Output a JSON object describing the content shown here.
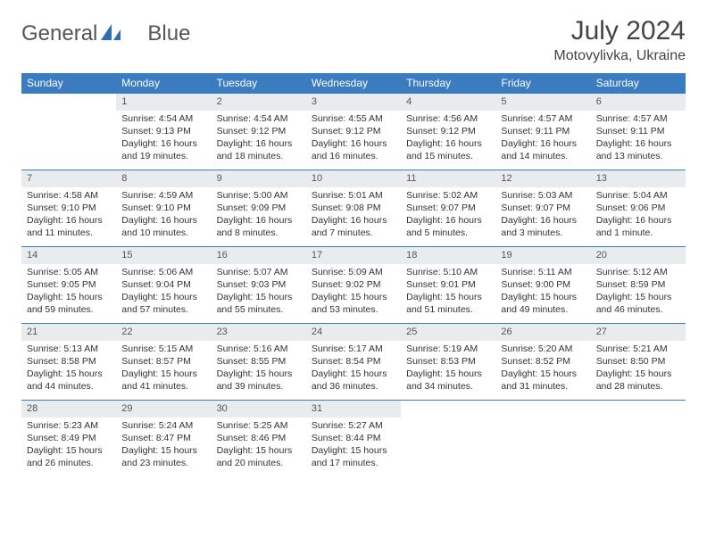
{
  "brand": {
    "part1": "General",
    "part2": "Blue"
  },
  "title": "July 2024",
  "location": "Motovylivka, Ukraine",
  "colors": {
    "header_bg": "#3b7bbf",
    "header_text": "#ffffff",
    "daynum_bg": "#e9ecef",
    "rule": "#3b7bbf",
    "body_text": "#333333",
    "title_text": "#444444"
  },
  "weekdays": [
    "Sunday",
    "Monday",
    "Tuesday",
    "Wednesday",
    "Thursday",
    "Friday",
    "Saturday"
  ],
  "weeks": [
    [
      {
        "n": "",
        "sr": "",
        "ss": "",
        "dl1": "",
        "dl2": ""
      },
      {
        "n": "1",
        "sr": "Sunrise: 4:54 AM",
        "ss": "Sunset: 9:13 PM",
        "dl1": "Daylight: 16 hours",
        "dl2": "and 19 minutes."
      },
      {
        "n": "2",
        "sr": "Sunrise: 4:54 AM",
        "ss": "Sunset: 9:12 PM",
        "dl1": "Daylight: 16 hours",
        "dl2": "and 18 minutes."
      },
      {
        "n": "3",
        "sr": "Sunrise: 4:55 AM",
        "ss": "Sunset: 9:12 PM",
        "dl1": "Daylight: 16 hours",
        "dl2": "and 16 minutes."
      },
      {
        "n": "4",
        "sr": "Sunrise: 4:56 AM",
        "ss": "Sunset: 9:12 PM",
        "dl1": "Daylight: 16 hours",
        "dl2": "and 15 minutes."
      },
      {
        "n": "5",
        "sr": "Sunrise: 4:57 AM",
        "ss": "Sunset: 9:11 PM",
        "dl1": "Daylight: 16 hours",
        "dl2": "and 14 minutes."
      },
      {
        "n": "6",
        "sr": "Sunrise: 4:57 AM",
        "ss": "Sunset: 9:11 PM",
        "dl1": "Daylight: 16 hours",
        "dl2": "and 13 minutes."
      }
    ],
    [
      {
        "n": "7",
        "sr": "Sunrise: 4:58 AM",
        "ss": "Sunset: 9:10 PM",
        "dl1": "Daylight: 16 hours",
        "dl2": "and 11 minutes."
      },
      {
        "n": "8",
        "sr": "Sunrise: 4:59 AM",
        "ss": "Sunset: 9:10 PM",
        "dl1": "Daylight: 16 hours",
        "dl2": "and 10 minutes."
      },
      {
        "n": "9",
        "sr": "Sunrise: 5:00 AM",
        "ss": "Sunset: 9:09 PM",
        "dl1": "Daylight: 16 hours",
        "dl2": "and 8 minutes."
      },
      {
        "n": "10",
        "sr": "Sunrise: 5:01 AM",
        "ss": "Sunset: 9:08 PM",
        "dl1": "Daylight: 16 hours",
        "dl2": "and 7 minutes."
      },
      {
        "n": "11",
        "sr": "Sunrise: 5:02 AM",
        "ss": "Sunset: 9:07 PM",
        "dl1": "Daylight: 16 hours",
        "dl2": "and 5 minutes."
      },
      {
        "n": "12",
        "sr": "Sunrise: 5:03 AM",
        "ss": "Sunset: 9:07 PM",
        "dl1": "Daylight: 16 hours",
        "dl2": "and 3 minutes."
      },
      {
        "n": "13",
        "sr": "Sunrise: 5:04 AM",
        "ss": "Sunset: 9:06 PM",
        "dl1": "Daylight: 16 hours",
        "dl2": "and 1 minute."
      }
    ],
    [
      {
        "n": "14",
        "sr": "Sunrise: 5:05 AM",
        "ss": "Sunset: 9:05 PM",
        "dl1": "Daylight: 15 hours",
        "dl2": "and 59 minutes."
      },
      {
        "n": "15",
        "sr": "Sunrise: 5:06 AM",
        "ss": "Sunset: 9:04 PM",
        "dl1": "Daylight: 15 hours",
        "dl2": "and 57 minutes."
      },
      {
        "n": "16",
        "sr": "Sunrise: 5:07 AM",
        "ss": "Sunset: 9:03 PM",
        "dl1": "Daylight: 15 hours",
        "dl2": "and 55 minutes."
      },
      {
        "n": "17",
        "sr": "Sunrise: 5:09 AM",
        "ss": "Sunset: 9:02 PM",
        "dl1": "Daylight: 15 hours",
        "dl2": "and 53 minutes."
      },
      {
        "n": "18",
        "sr": "Sunrise: 5:10 AM",
        "ss": "Sunset: 9:01 PM",
        "dl1": "Daylight: 15 hours",
        "dl2": "and 51 minutes."
      },
      {
        "n": "19",
        "sr": "Sunrise: 5:11 AM",
        "ss": "Sunset: 9:00 PM",
        "dl1": "Daylight: 15 hours",
        "dl2": "and 49 minutes."
      },
      {
        "n": "20",
        "sr": "Sunrise: 5:12 AM",
        "ss": "Sunset: 8:59 PM",
        "dl1": "Daylight: 15 hours",
        "dl2": "and 46 minutes."
      }
    ],
    [
      {
        "n": "21",
        "sr": "Sunrise: 5:13 AM",
        "ss": "Sunset: 8:58 PM",
        "dl1": "Daylight: 15 hours",
        "dl2": "and 44 minutes."
      },
      {
        "n": "22",
        "sr": "Sunrise: 5:15 AM",
        "ss": "Sunset: 8:57 PM",
        "dl1": "Daylight: 15 hours",
        "dl2": "and 41 minutes."
      },
      {
        "n": "23",
        "sr": "Sunrise: 5:16 AM",
        "ss": "Sunset: 8:55 PM",
        "dl1": "Daylight: 15 hours",
        "dl2": "and 39 minutes."
      },
      {
        "n": "24",
        "sr": "Sunrise: 5:17 AM",
        "ss": "Sunset: 8:54 PM",
        "dl1": "Daylight: 15 hours",
        "dl2": "and 36 minutes."
      },
      {
        "n": "25",
        "sr": "Sunrise: 5:19 AM",
        "ss": "Sunset: 8:53 PM",
        "dl1": "Daylight: 15 hours",
        "dl2": "and 34 minutes."
      },
      {
        "n": "26",
        "sr": "Sunrise: 5:20 AM",
        "ss": "Sunset: 8:52 PM",
        "dl1": "Daylight: 15 hours",
        "dl2": "and 31 minutes."
      },
      {
        "n": "27",
        "sr": "Sunrise: 5:21 AM",
        "ss": "Sunset: 8:50 PM",
        "dl1": "Daylight: 15 hours",
        "dl2": "and 28 minutes."
      }
    ],
    [
      {
        "n": "28",
        "sr": "Sunrise: 5:23 AM",
        "ss": "Sunset: 8:49 PM",
        "dl1": "Daylight: 15 hours",
        "dl2": "and 26 minutes."
      },
      {
        "n": "29",
        "sr": "Sunrise: 5:24 AM",
        "ss": "Sunset: 8:47 PM",
        "dl1": "Daylight: 15 hours",
        "dl2": "and 23 minutes."
      },
      {
        "n": "30",
        "sr": "Sunrise: 5:25 AM",
        "ss": "Sunset: 8:46 PM",
        "dl1": "Daylight: 15 hours",
        "dl2": "and 20 minutes."
      },
      {
        "n": "31",
        "sr": "Sunrise: 5:27 AM",
        "ss": "Sunset: 8:44 PM",
        "dl1": "Daylight: 15 hours",
        "dl2": "and 17 minutes."
      },
      {
        "n": "",
        "sr": "",
        "ss": "",
        "dl1": "",
        "dl2": ""
      },
      {
        "n": "",
        "sr": "",
        "ss": "",
        "dl1": "",
        "dl2": ""
      },
      {
        "n": "",
        "sr": "",
        "ss": "",
        "dl1": "",
        "dl2": ""
      }
    ]
  ]
}
